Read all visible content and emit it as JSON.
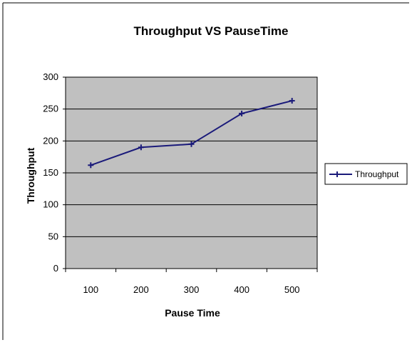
{
  "chart_data": {
    "type": "line",
    "title": "Throughput VS PauseTime",
    "xlabel": "Pause Time",
    "ylabel": "Throughput",
    "categories": [
      "100",
      "200",
      "300",
      "400",
      "500"
    ],
    "series": [
      {
        "name": "Throughput",
        "values": [
          162,
          190,
          195,
          243,
          263
        ],
        "color": "#1a1a7a"
      }
    ],
    "ylim": [
      0,
      300
    ],
    "yticks": [
      "0",
      "50",
      "100",
      "150",
      "200",
      "250",
      "300"
    ],
    "grid": true,
    "plot_background": "#c0c0c0",
    "legend_position": "right",
    "marker": "plus"
  }
}
